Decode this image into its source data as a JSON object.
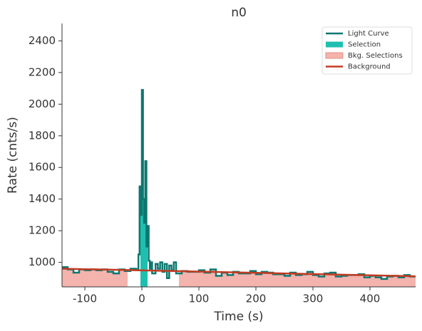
{
  "chart_data": {
    "type": "lightcurve",
    "title": "n0",
    "x_label": "Time (s)",
    "y_label": "Rate (cnts/s)",
    "x": [
      -140,
      -130,
      -120,
      -110,
      -100,
      -90,
      -80,
      -70,
      -60,
      -50,
      -40,
      -30,
      -20,
      -10,
      -6,
      -4,
      -2,
      0,
      2,
      4,
      6,
      8,
      10,
      12,
      14,
      16,
      18,
      24,
      28,
      32,
      36,
      40,
      44,
      48,
      52,
      56,
      60,
      70,
      80,
      90,
      100,
      110,
      120,
      130,
      140,
      150,
      160,
      170,
      180,
      190,
      200,
      210,
      220,
      230,
      240,
      250,
      260,
      270,
      280,
      290,
      300,
      310,
      320,
      330,
      340,
      350,
      360,
      370,
      380,
      390,
      400,
      410,
      420,
      430,
      440,
      450,
      460,
      470
    ],
    "series": [
      {
        "name": "Light Curve",
        "color": "#0e7670",
        "values": [
          970,
          955,
          935,
          955,
          950,
          955,
          950,
          955,
          940,
          930,
          955,
          945,
          960,
          955,
          1050,
          1480,
          1300,
          2090,
          1400,
          1250,
          1640,
          1100,
          1230,
          1010,
          960,
          1000,
          930,
          990,
          960,
          1000,
          940,
          990,
          900,
          980,
          950,
          1000,
          930,
          945,
          940,
          940,
          950,
          935,
          955,
          915,
          935,
          920,
          940,
          930,
          930,
          945,
          925,
          940,
          935,
          925,
          925,
          915,
          935,
          920,
          925,
          940,
          920,
          910,
          930,
          935,
          910,
          915,
          920,
          920,
          925,
          905,
          915,
          905,
          895,
          910,
          915,
          905,
          920,
          910
        ]
      },
      {
        "name": "Selection",
        "color": "#1fbfb0",
        "ranges": [
          [
            -2.5,
            10
          ]
        ]
      },
      {
        "name": "Bkg. Selections",
        "color": "#f4b3ac",
        "ranges": [
          [
            -140,
            -25
          ],
          [
            65,
            480
          ]
        ]
      },
      {
        "name": "Background",
        "color": "#c23b22",
        "x": [
          -140,
          480
        ],
        "values": [
          960,
          912
        ]
      }
    ],
    "xlim": [
      -140,
      480
    ],
    "ylim": [
      845,
      2510
    ],
    "xticks": [
      -100,
      0,
      100,
      200,
      300,
      400
    ],
    "yticks": [
      1000,
      1200,
      1400,
      1600,
      1800,
      2000,
      2200,
      2400
    ],
    "legend": "upper right"
  }
}
